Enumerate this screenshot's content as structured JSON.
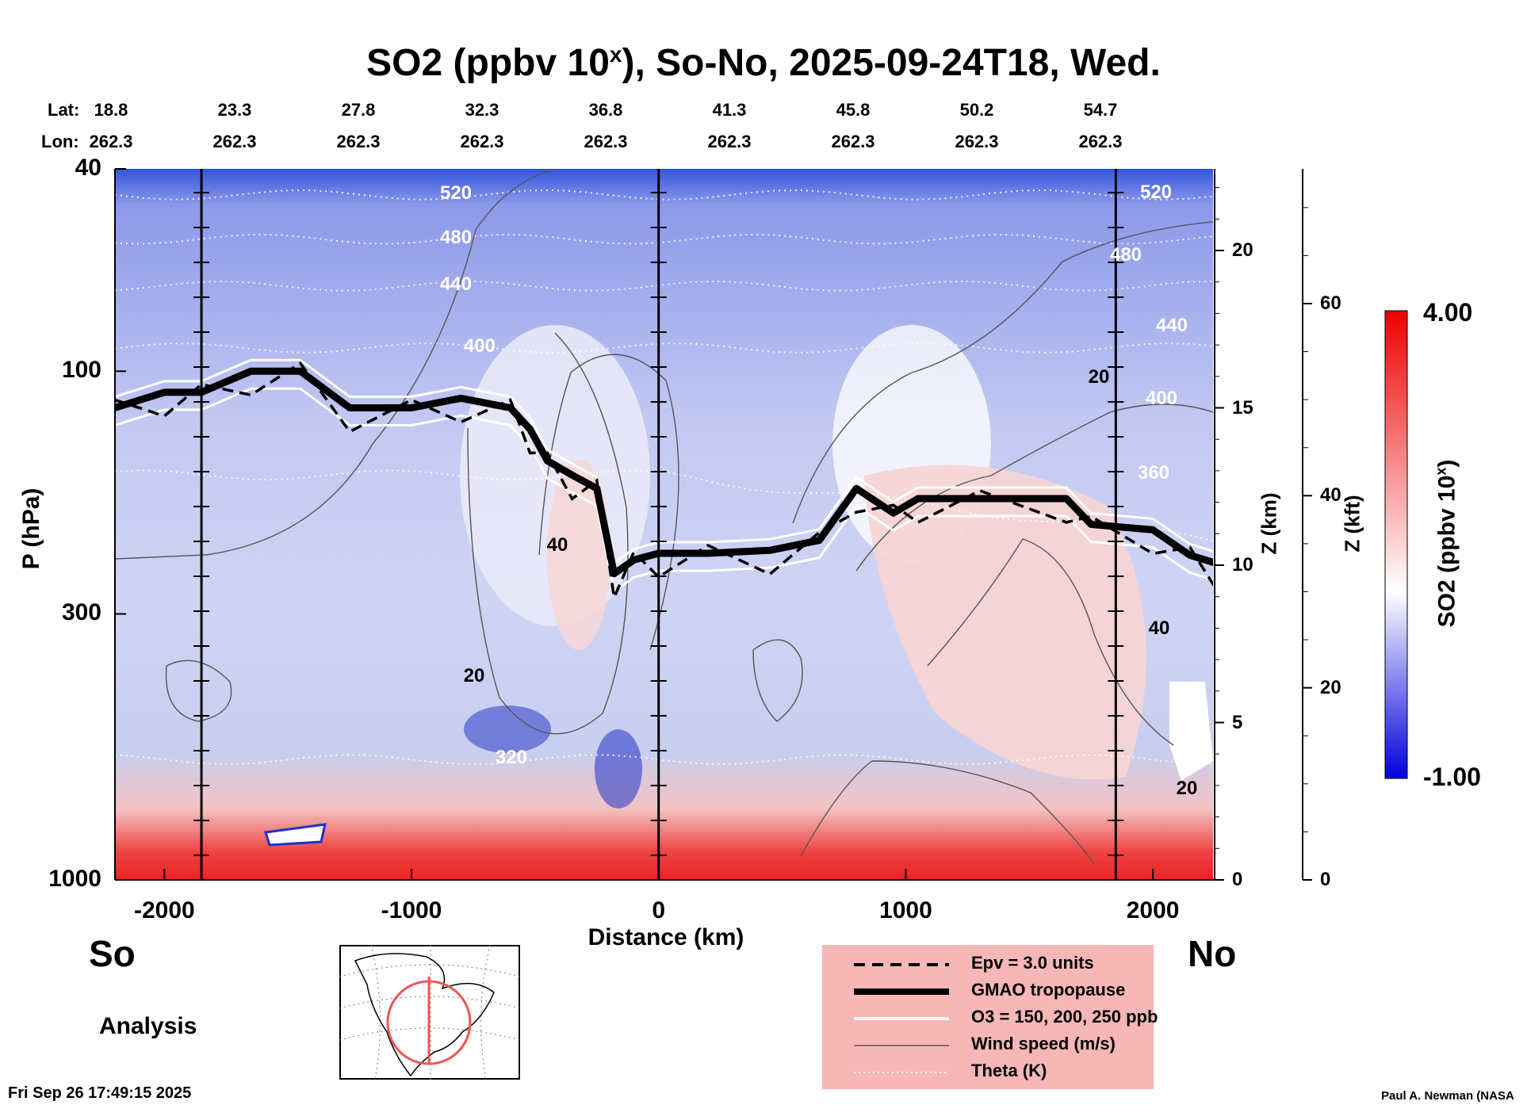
{
  "title": "SO2 (ppbv 10",
  "title_sup": "x",
  "title_rest": "), So-No, 2025-09-24T18, Wed.",
  "lat_label": "Lat:",
  "lon_label": "Lon:",
  "lat_values": [
    "18.8",
    "23.3",
    "27.8",
    "32.3",
    "36.8",
    "41.3",
    "45.8",
    "50.2",
    "54.7"
  ],
  "lon_values": [
    "262.3",
    "262.3",
    "262.3",
    "262.3",
    "262.3",
    "262.3",
    "262.3",
    "262.3",
    "262.3"
  ],
  "y_axis_label": "P (hPa)",
  "x_axis_label": "Distance (km)",
  "z_km_label": "Z (km)",
  "z_kft_label": "Z (kft)",
  "cb_label": "SO2 (ppbv 10",
  "cb_label_sup": "x",
  "cb_label_end": ")",
  "cb_max": "4.00",
  "cb_min": "-1.00",
  "left_end": "So",
  "right_end": "No",
  "analysis": "Analysis",
  "timestamp": "Fri Sep 26 17:49:15 2025",
  "credit": "Paul A. Newman (NASA",
  "legend": [
    {
      "label": "Epv = 3.0 units",
      "style": "dashed"
    },
    {
      "label": "GMAO tropopause",
      "style": "thick"
    },
    {
      "label": "O3 = 150, 200, 250 ppb",
      "style": "white"
    },
    {
      "label": "Wind speed (m/s)",
      "style": "thin"
    },
    {
      "label": "Theta (K)",
      "style": "dotted"
    }
  ],
  "chart_data": {
    "type": "heatmap",
    "xlim": [
      -2200,
      2250
    ],
    "ylim_hpa": [
      1000,
      40
    ],
    "y_scale": "log",
    "x_ticks": [
      -2000,
      -1000,
      0,
      1000,
      2000
    ],
    "x_tick_labels": [
      "-2000",
      "-1000",
      "0",
      "1000",
      "2000"
    ],
    "p_ticks": [
      40,
      100,
      300,
      1000
    ],
    "p_tick_labels": [
      "40",
      "100",
      "300",
      "1000"
    ],
    "z_km_ticks": [
      0,
      5,
      10,
      15,
      20
    ],
    "z_km_labels": [
      "0",
      "5",
      "10",
      "15",
      "20"
    ],
    "z_kft_ticks": [
      0,
      20,
      40,
      60
    ],
    "z_kft_labels": [
      "0",
      "20",
      "40",
      "60"
    ],
    "colorbar": {
      "min": -1.0,
      "max": 4.0,
      "colors": [
        "#0000dd",
        "#ffffff",
        "#ee0000"
      ]
    },
    "vertical_markers_km": [
      -1850,
      0,
      1850
    ],
    "theta_contours": [
      {
        "label": "520",
        "p": 45
      },
      {
        "label": "480",
        "p": 55
      },
      {
        "label": "440",
        "p": 68
      },
      {
        "label": "400",
        "p": 90
      },
      {
        "label": "360",
        "p": 160
      },
      {
        "label": "320",
        "p": 580
      }
    ],
    "wind_labels": [
      "20",
      "40"
    ],
    "tropopause_hpa": [
      {
        "x": -2200,
        "p": 118
      },
      {
        "x": -2000,
        "p": 110
      },
      {
        "x": -1850,
        "p": 110
      },
      {
        "x": -1650,
        "p": 100
      },
      {
        "x": -1450,
        "p": 100
      },
      {
        "x": -1250,
        "p": 118
      },
      {
        "x": -1000,
        "p": 118
      },
      {
        "x": -800,
        "p": 113
      },
      {
        "x": -600,
        "p": 118
      },
      {
        "x": -520,
        "p": 130
      },
      {
        "x": -450,
        "p": 150
      },
      {
        "x": -350,
        "p": 160
      },
      {
        "x": -250,
        "p": 170
      },
      {
        "x": -180,
        "p": 250
      },
      {
        "x": -100,
        "p": 235
      },
      {
        "x": 0,
        "p": 228
      },
      {
        "x": 200,
        "p": 228
      },
      {
        "x": 450,
        "p": 225
      },
      {
        "x": 650,
        "p": 215
      },
      {
        "x": 800,
        "p": 170
      },
      {
        "x": 950,
        "p": 190
      },
      {
        "x": 1050,
        "p": 178
      },
      {
        "x": 1300,
        "p": 178
      },
      {
        "x": 1650,
        "p": 178
      },
      {
        "x": 1750,
        "p": 200
      },
      {
        "x": 2000,
        "p": 205
      },
      {
        "x": 2150,
        "p": 230
      },
      {
        "x": 2250,
        "p": 238
      }
    ]
  }
}
